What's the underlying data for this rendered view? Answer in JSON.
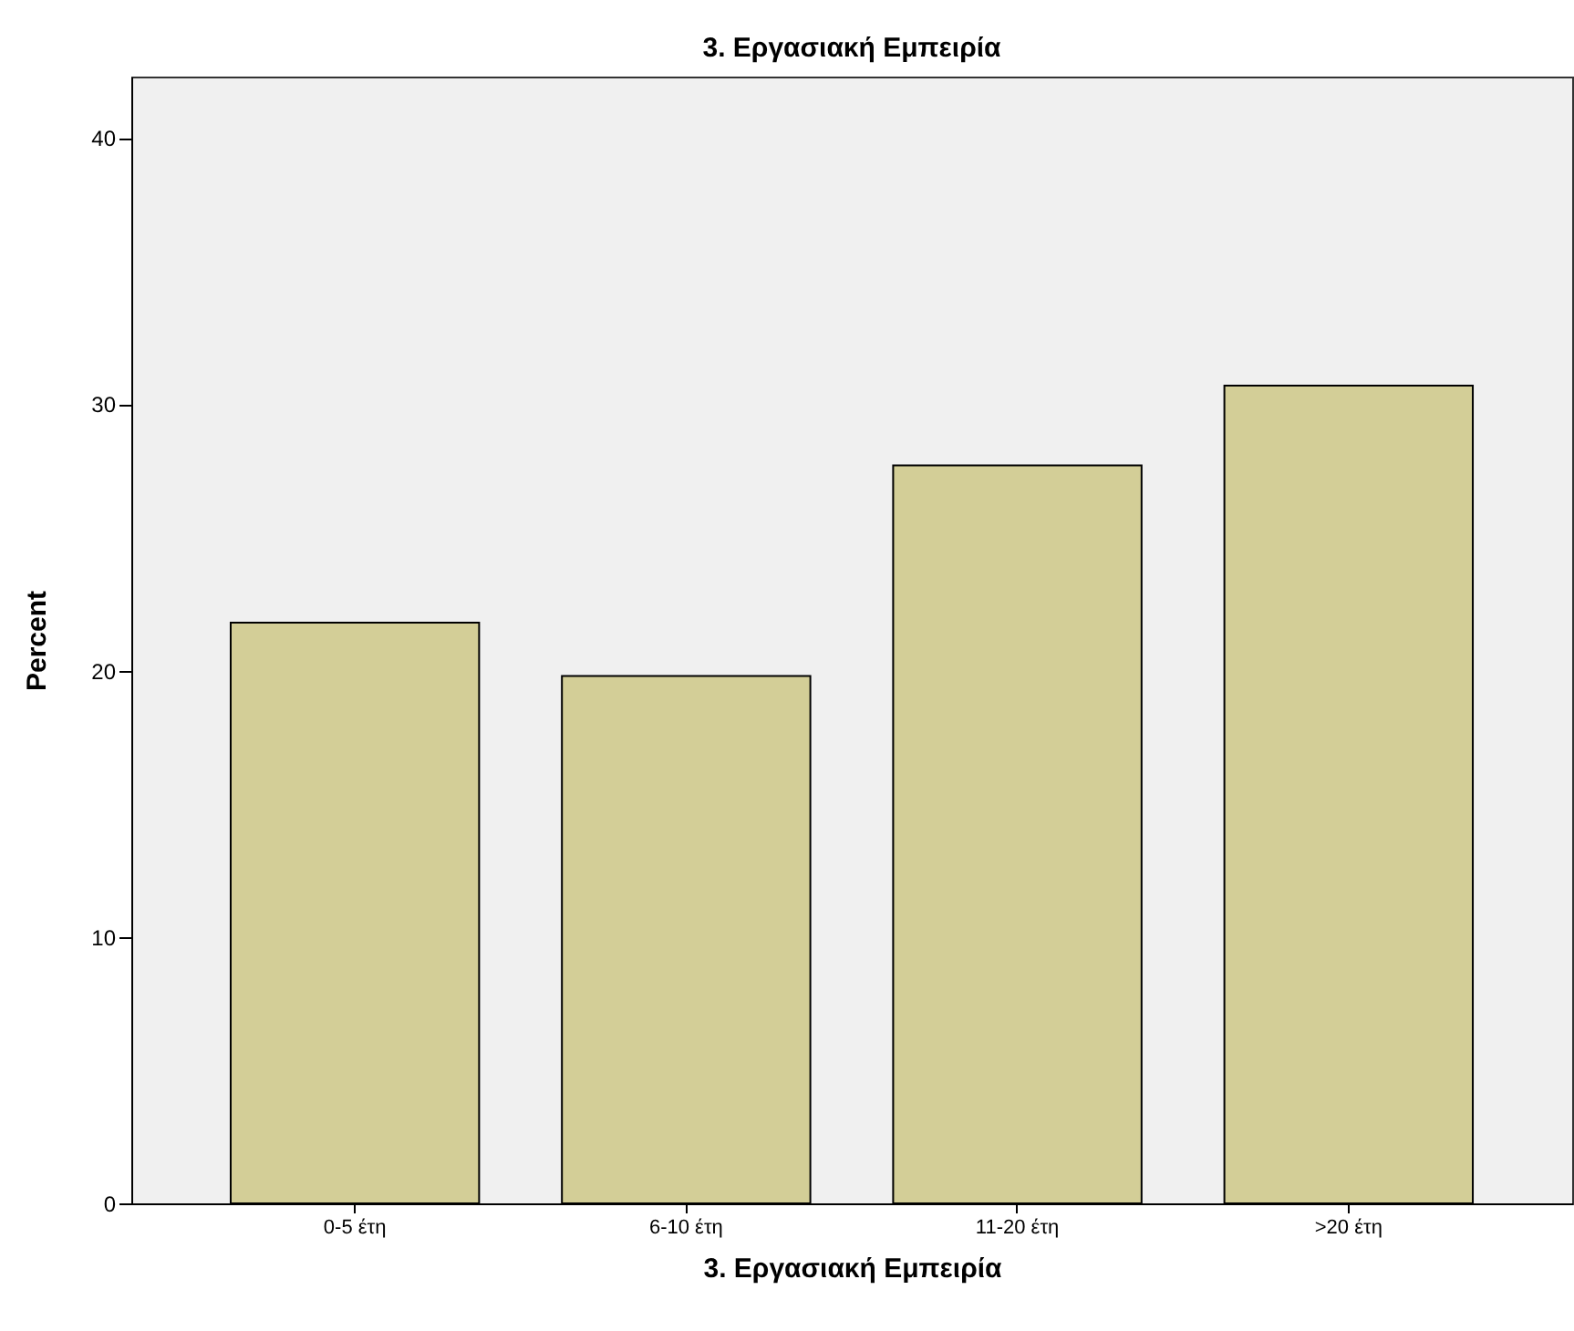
{
  "chart_data": {
    "type": "bar",
    "title": "3. Εργασιακή Εμπειρία",
    "xlabel": "3. Εργασιακή Εμπειρία",
    "ylabel": "Percent",
    "categories": [
      "0-5 έτη",
      "6-10 έτη",
      "11-20 έτη",
      ">20 έτη"
    ],
    "values": [
      21.8,
      19.8,
      27.7,
      30.7
    ],
    "color": "#d3ce97",
    "ylim": [
      0,
      42.3
    ],
    "yticks": [
      0,
      10,
      20,
      30,
      40
    ],
    "grid": false
  }
}
